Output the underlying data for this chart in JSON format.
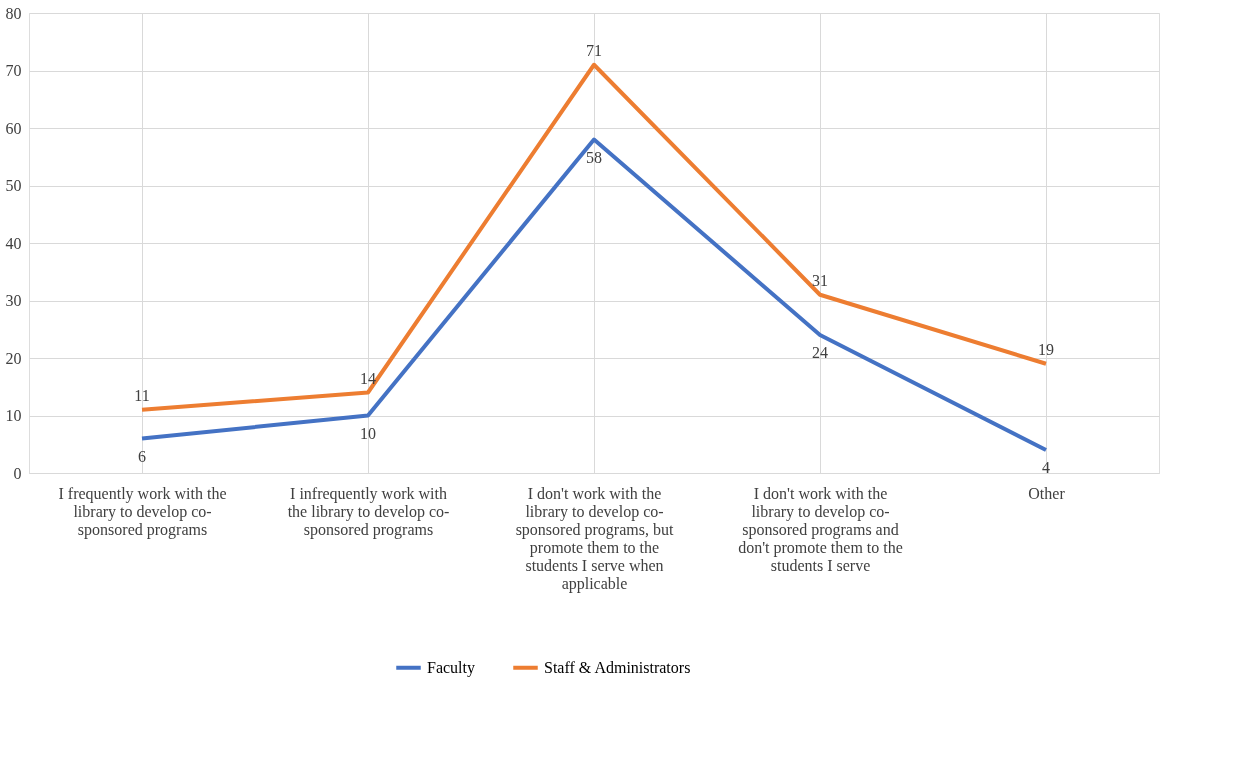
{
  "chart_data": {
    "type": "line",
    "categories": [
      "I frequently work with the library to develop co-sponsored programs",
      "I infrequently work with the library to develop co-sponsored programs",
      "I don't work with the library to develop co-sponsored programs, but promote them to the students I serve when applicable",
      "I don't work with the library to develop co-sponsored programs and don't promote them to the students I serve",
      "Other"
    ],
    "series": [
      {
        "name": "Faculty",
        "color": "#4472c4",
        "values": [
          6,
          10,
          58,
          24,
          4
        ]
      },
      {
        "name": "Staff & Administrators",
        "color": "#ed7d31",
        "values": [
          11,
          14,
          71,
          31,
          19
        ]
      }
    ],
    "ylim": [
      0,
      80
    ],
    "yticks": [
      0,
      10,
      20,
      30,
      40,
      50,
      60,
      70,
      80
    ],
    "grid": true,
    "legend": "bottom",
    "data_labels": true,
    "marker": "none",
    "line_style": "solid"
  }
}
